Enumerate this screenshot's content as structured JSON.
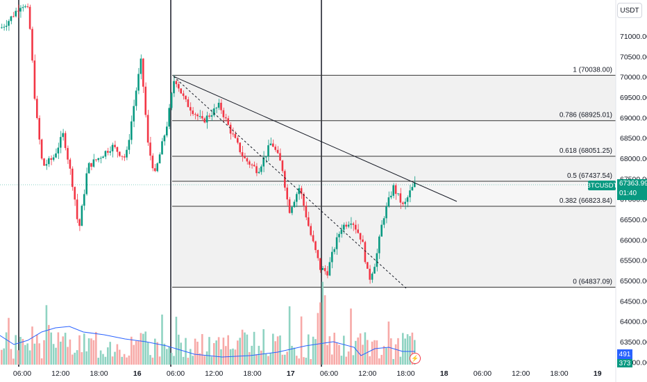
{
  "currency": "USDT",
  "symbol": "BTCUSDT",
  "last_price": "67363.99",
  "countdown": "01:40",
  "volume_value": "491",
  "volume_value_2": "373",
  "price_axis": [
    "71000.00",
    "70500.00",
    "70000.00",
    "69500.00",
    "69000.00",
    "68500.00",
    "68000.00",
    "67500.00",
    "67000.00",
    "66500.00",
    "66000.00",
    "65500.00",
    "65000.00",
    "64500.00",
    "64000.00",
    "63500.00",
    "63000.00"
  ],
  "time_axis": [
    "06:00",
    "12:00",
    "18:00",
    "16",
    "06:00",
    "12:00",
    "18:00",
    "17",
    "06:00",
    "12:00",
    "18:00",
    "18",
    "06:00",
    "12:00",
    "18:00",
    "19"
  ],
  "fib_levels": [
    {
      "label": "1 (70038.00)",
      "price": 70038.0
    },
    {
      "label": "0.786 (68925.01)",
      "price": 68925.01
    },
    {
      "label": "0.618 (68051.25)",
      "price": 68051.25
    },
    {
      "label": "0.5 (67437.54)",
      "price": 67437.54
    },
    {
      "label": "0.382 (66823.84)",
      "price": 66823.84
    },
    {
      "label": "0 (64837.09)",
      "price": 64837.09
    }
  ],
  "colors": {
    "up": "#089981",
    "down": "#f23645",
    "volume_ma": "#2962ff",
    "fib_fill": "#f0f0f0"
  },
  "icons": {
    "flash": "flash-icon"
  }
}
